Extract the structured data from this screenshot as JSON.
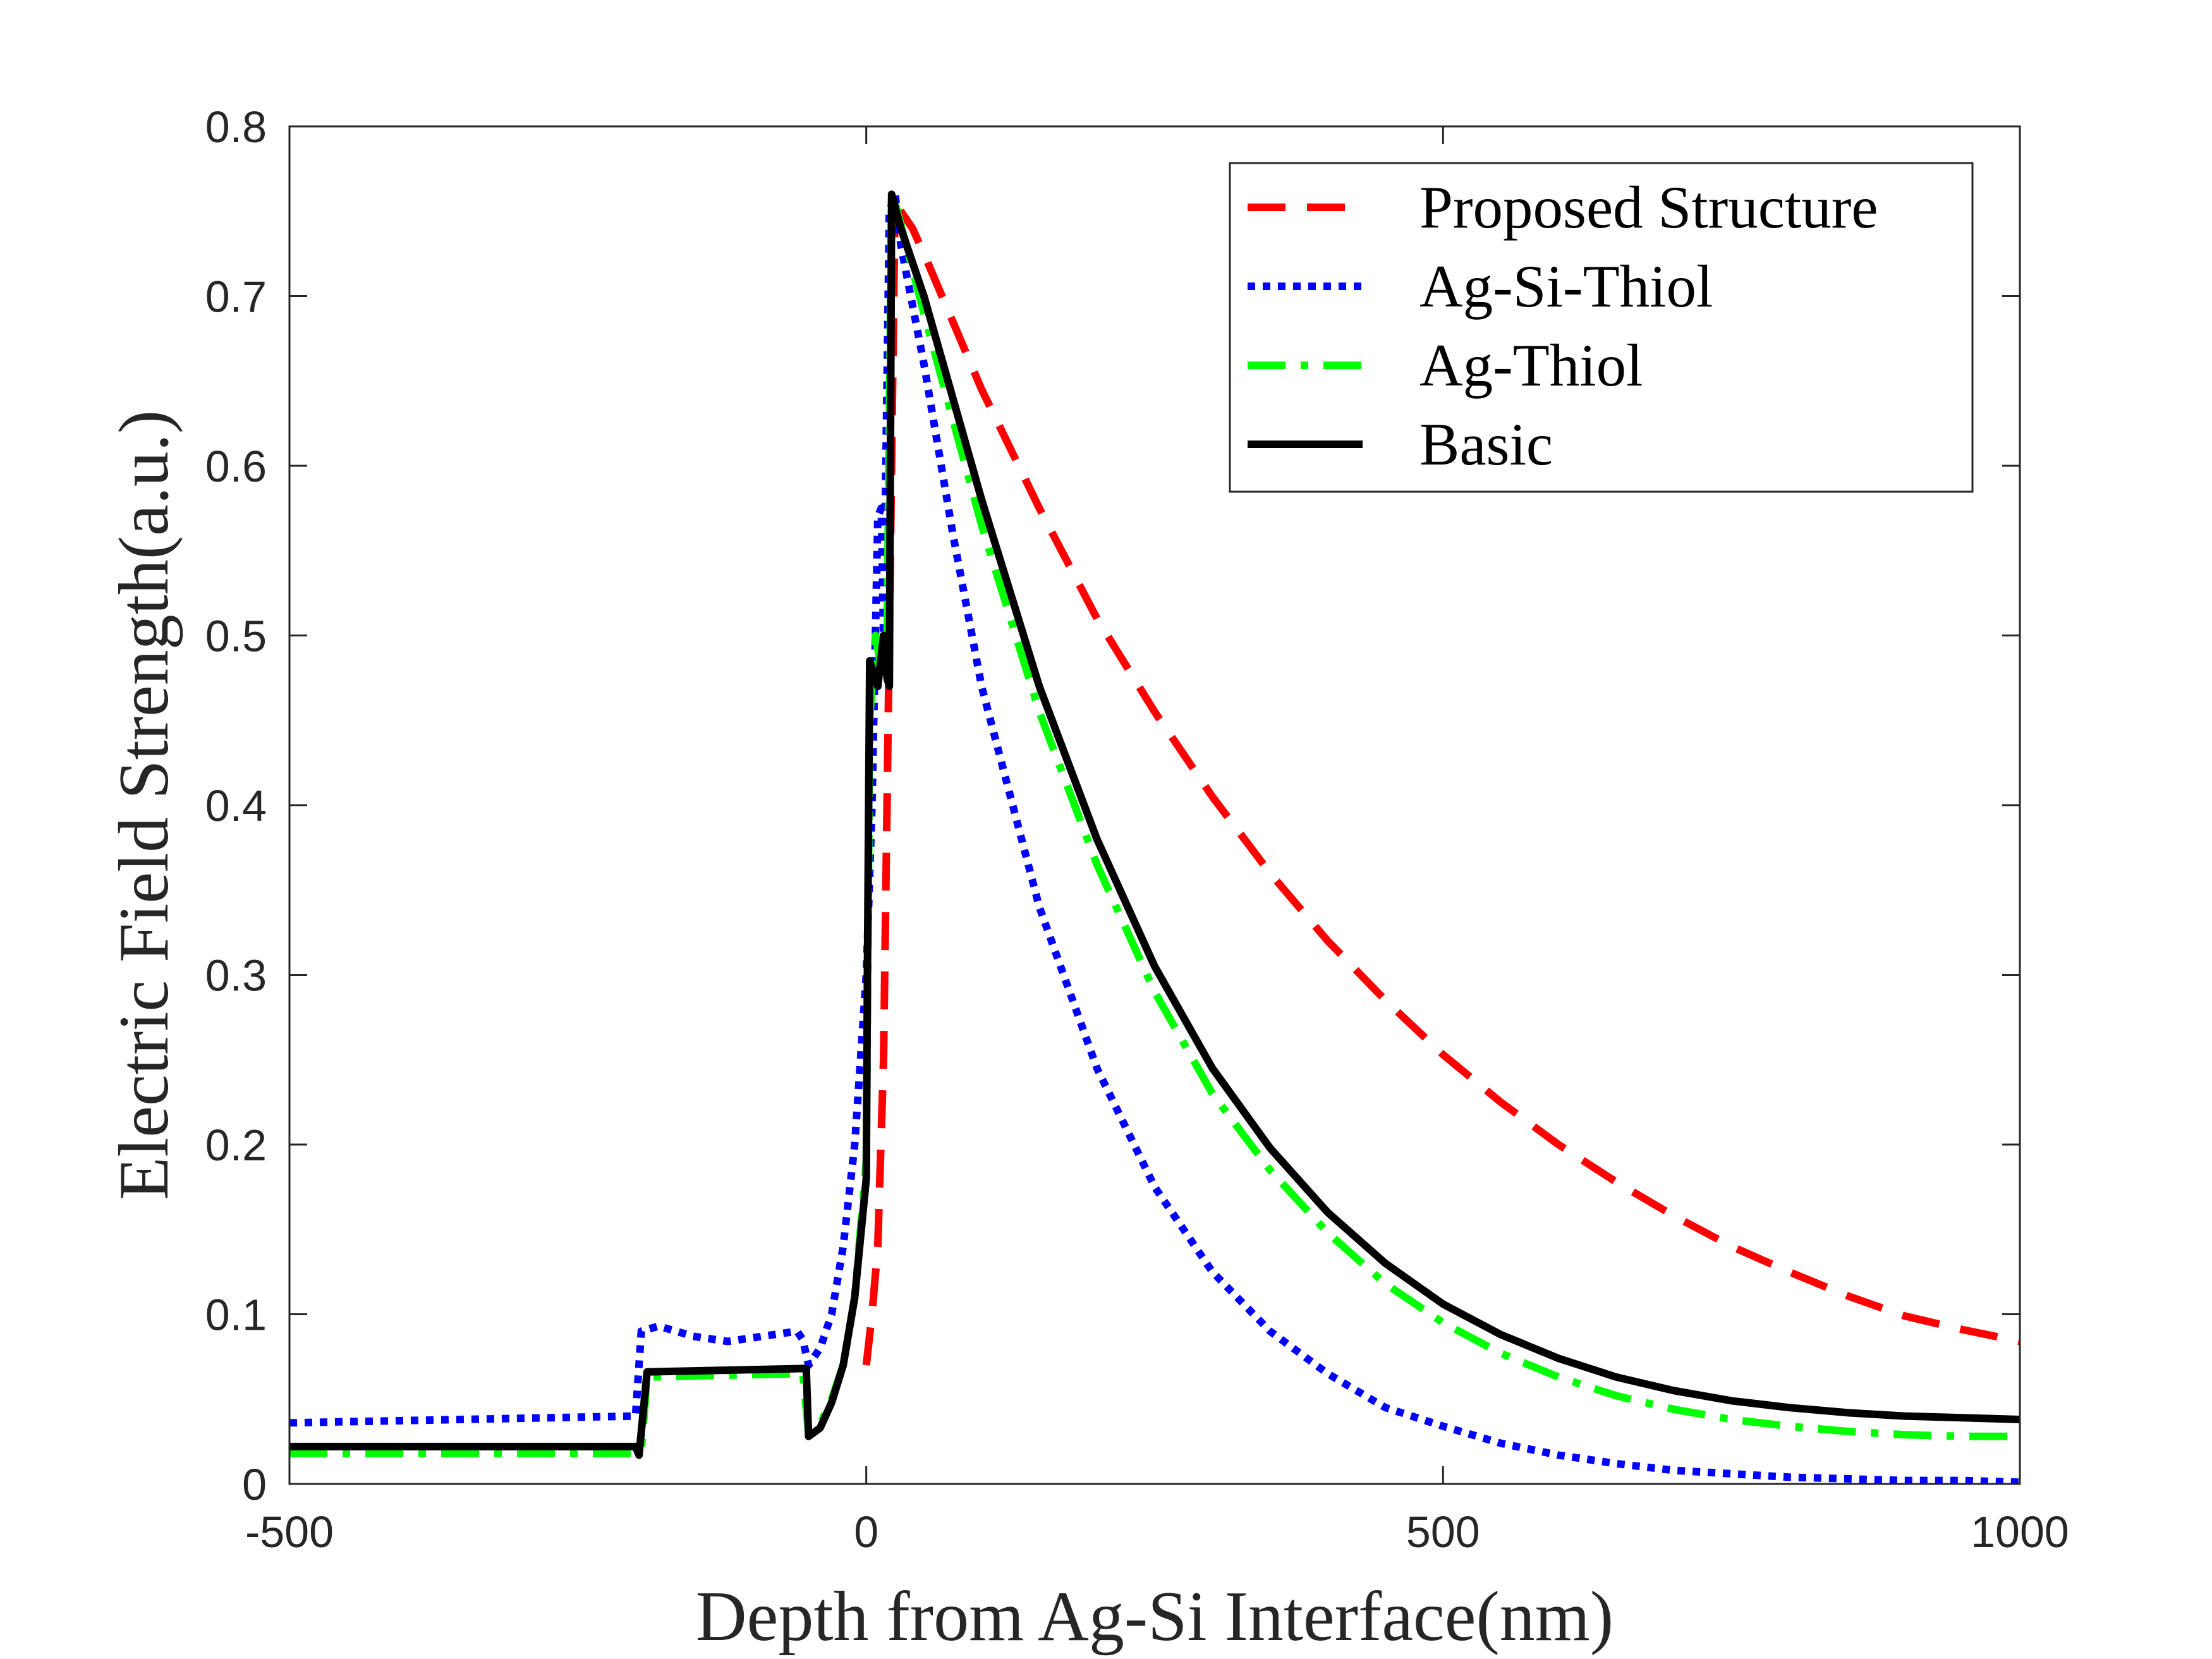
{
  "chart_data": {
    "type": "line",
    "title": "",
    "xlabel": "Depth from Ag-Si Interface(nm)",
    "ylabel": "Electric Field Strength(a.u.)",
    "xlim": [
      -500,
      1000
    ],
    "ylim": [
      0,
      0.8
    ],
    "xticks": [
      -500,
      0,
      500,
      1000
    ],
    "xtick_labels": [
      "-500",
      "0",
      "500",
      "1000"
    ],
    "yticks": [
      0,
      0.1,
      0.2,
      0.3,
      0.4,
      0.5,
      0.6,
      0.7,
      0.8
    ],
    "ytick_labels": [
      "0",
      "0.1",
      "0.2",
      "0.3",
      "0.4",
      "0.5",
      "0.6",
      "0.7",
      "0.8"
    ],
    "grid": false,
    "legend_position": "top-right",
    "series": [
      {
        "name": "Proposed Structure",
        "color": "#ff0000",
        "style": "dashed",
        "x": [
          0,
          5,
          10,
          15,
          20,
          25,
          30,
          40,
          50,
          75,
          100,
          150,
          200,
          250,
          300,
          350,
          400,
          450,
          500,
          550,
          600,
          650,
          700,
          750,
          800,
          850,
          900,
          950,
          1000
        ],
        "y": [
          0.07,
          0.1,
          0.14,
          0.25,
          0.5,
          0.76,
          0.75,
          0.74,
          0.725,
          0.685,
          0.645,
          0.575,
          0.51,
          0.455,
          0.405,
          0.36,
          0.32,
          0.285,
          0.253,
          0.225,
          0.2,
          0.178,
          0.158,
          0.14,
          0.125,
          0.111,
          0.099,
          0.091,
          0.084
        ]
      },
      {
        "name": "Ag-Si-Thiol",
        "color": "#0000ff",
        "style": "dotted",
        "x": [
          -500,
          -200,
          -195,
          -180,
          -150,
          -120,
          -60,
          -55,
          -50,
          -40,
          -30,
          -20,
          -10,
          0,
          5,
          10,
          13,
          15,
          20,
          25,
          30,
          50,
          75,
          100,
          150,
          200,
          250,
          300,
          350,
          400,
          450,
          500,
          550,
          600,
          650,
          700,
          750,
          800,
          850,
          900,
          950,
          1000
        ],
        "y": [
          0.036,
          0.04,
          0.09,
          0.093,
          0.087,
          0.084,
          0.09,
          0.085,
          0.07,
          0.08,
          0.1,
          0.14,
          0.2,
          0.3,
          0.4,
          0.57,
          0.575,
          0.5,
          0.75,
          0.76,
          0.73,
          0.66,
          0.56,
          0.47,
          0.34,
          0.245,
          0.175,
          0.125,
          0.09,
          0.065,
          0.045,
          0.034,
          0.024,
          0.017,
          0.012,
          0.008,
          0.006,
          0.004,
          0.003,
          0.002,
          0.002,
          0.001
        ]
      },
      {
        "name": "Ag-Thiol",
        "color": "#00ff00",
        "style": "dashdot",
        "x": [
          -500,
          -200,
          -195,
          -190,
          -60,
          -55,
          -50,
          -40,
          -30,
          -20,
          -10,
          0,
          3,
          8,
          13,
          18,
          22,
          25,
          50,
          100,
          150,
          200,
          250,
          300,
          350,
          400,
          450,
          500,
          550,
          600,
          650,
          700,
          750,
          800,
          850,
          900,
          950,
          1000
        ],
        "y": [
          0.018,
          0.018,
          0.02,
          0.063,
          0.065,
          0.065,
          0.03,
          0.035,
          0.05,
          0.07,
          0.11,
          0.19,
          0.45,
          0.5,
          0.48,
          0.49,
          0.76,
          0.755,
          0.69,
          0.565,
          0.455,
          0.365,
          0.29,
          0.23,
          0.185,
          0.148,
          0.118,
          0.095,
          0.077,
          0.063,
          0.052,
          0.044,
          0.038,
          0.034,
          0.031,
          0.029,
          0.028,
          0.028
        ]
      },
      {
        "name": "Basic",
        "color": "#000000",
        "style": "solid",
        "x": [
          -500,
          -200,
          -197,
          -190,
          -55,
          -52,
          -50,
          -40,
          -30,
          -20,
          -10,
          0,
          1,
          3,
          10,
          15,
          18,
          20,
          22,
          24,
          30,
          50,
          100,
          150,
          200,
          250,
          300,
          350,
          400,
          450,
          500,
          550,
          600,
          650,
          700,
          750,
          800,
          850,
          900,
          950,
          1000
        ],
        "y": [
          0.022,
          0.022,
          0.017,
          0.066,
          0.068,
          0.068,
          0.028,
          0.033,
          0.048,
          0.07,
          0.11,
          0.18,
          0.3,
          0.485,
          0.47,
          0.5,
          0.475,
          0.47,
          0.76,
          0.755,
          0.74,
          0.7,
          0.58,
          0.47,
          0.38,
          0.305,
          0.245,
          0.198,
          0.16,
          0.13,
          0.106,
          0.088,
          0.074,
          0.063,
          0.055,
          0.049,
          0.045,
          0.042,
          0.04,
          0.039,
          0.038
        ]
      }
    ]
  }
}
